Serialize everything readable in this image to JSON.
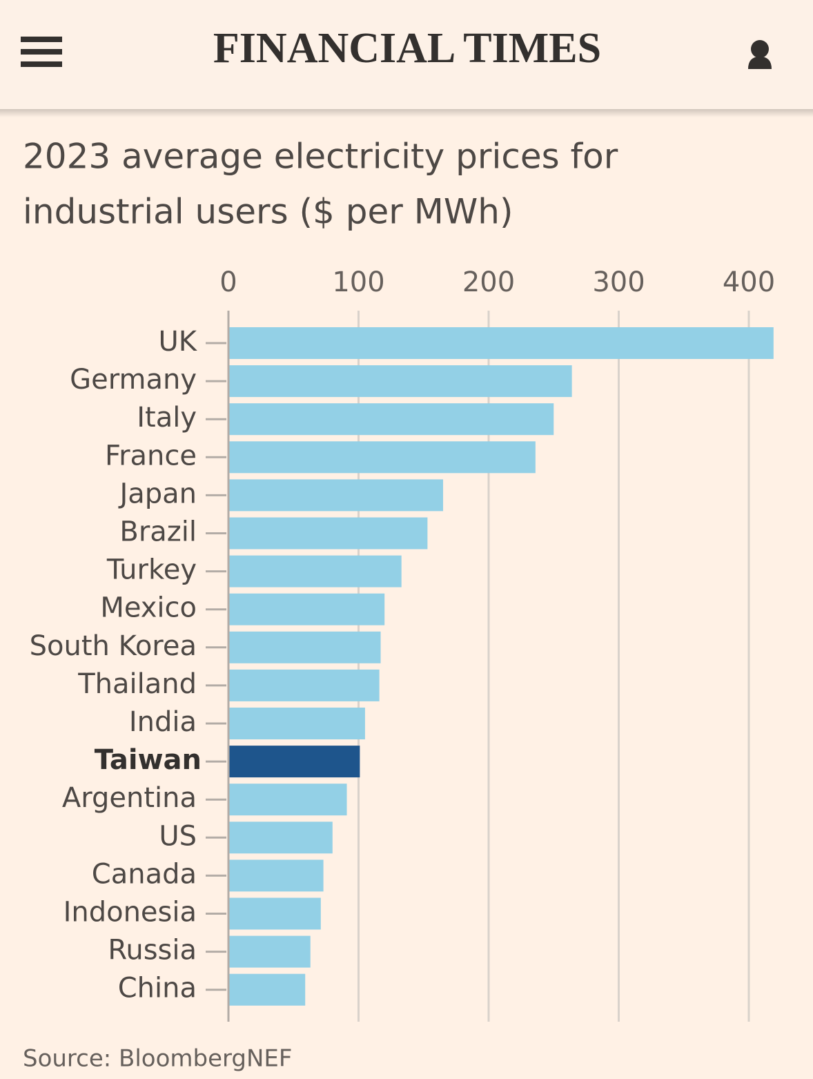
{
  "header": {
    "title": "FINANCIAL TIMES"
  },
  "chart_data": {
    "type": "bar",
    "orientation": "horizontal",
    "title": "2023 average electricity prices for",
    "subtitle": "industrial users ($ per MWh)",
    "source": "Source: BloombergNEF",
    "categories": [
      "UK",
      "Germany",
      "Italy",
      "France",
      "Japan",
      "Brazil",
      "Turkey",
      "Mexico",
      "South Korea",
      "Thailand",
      "India",
      "Taiwan",
      "Argentina",
      "US",
      "Canada",
      "Indonesia",
      "Russia",
      "China"
    ],
    "values": [
      419,
      264,
      250,
      236,
      165,
      153,
      133,
      120,
      117,
      116,
      105,
      101,
      91,
      80,
      73,
      71,
      63,
      59
    ],
    "color": "#93d0e6",
    "colors": [
      "#93d0e6",
      "#93d0e6",
      "#93d0e6",
      "#93d0e6",
      "#93d0e6",
      "#93d0e6",
      "#93d0e6",
      "#93d0e6",
      "#93d0e6",
      "#93d0e6",
      "#93d0e6",
      "#1e558c",
      "#93d0e6",
      "#93d0e6",
      "#93d0e6",
      "#93d0e6",
      "#93d0e6",
      "#93d0e6"
    ],
    "xlim": [
      0,
      420
    ],
    "xticks": [
      0,
      100,
      200,
      300,
      400
    ],
    "grid": true
  }
}
